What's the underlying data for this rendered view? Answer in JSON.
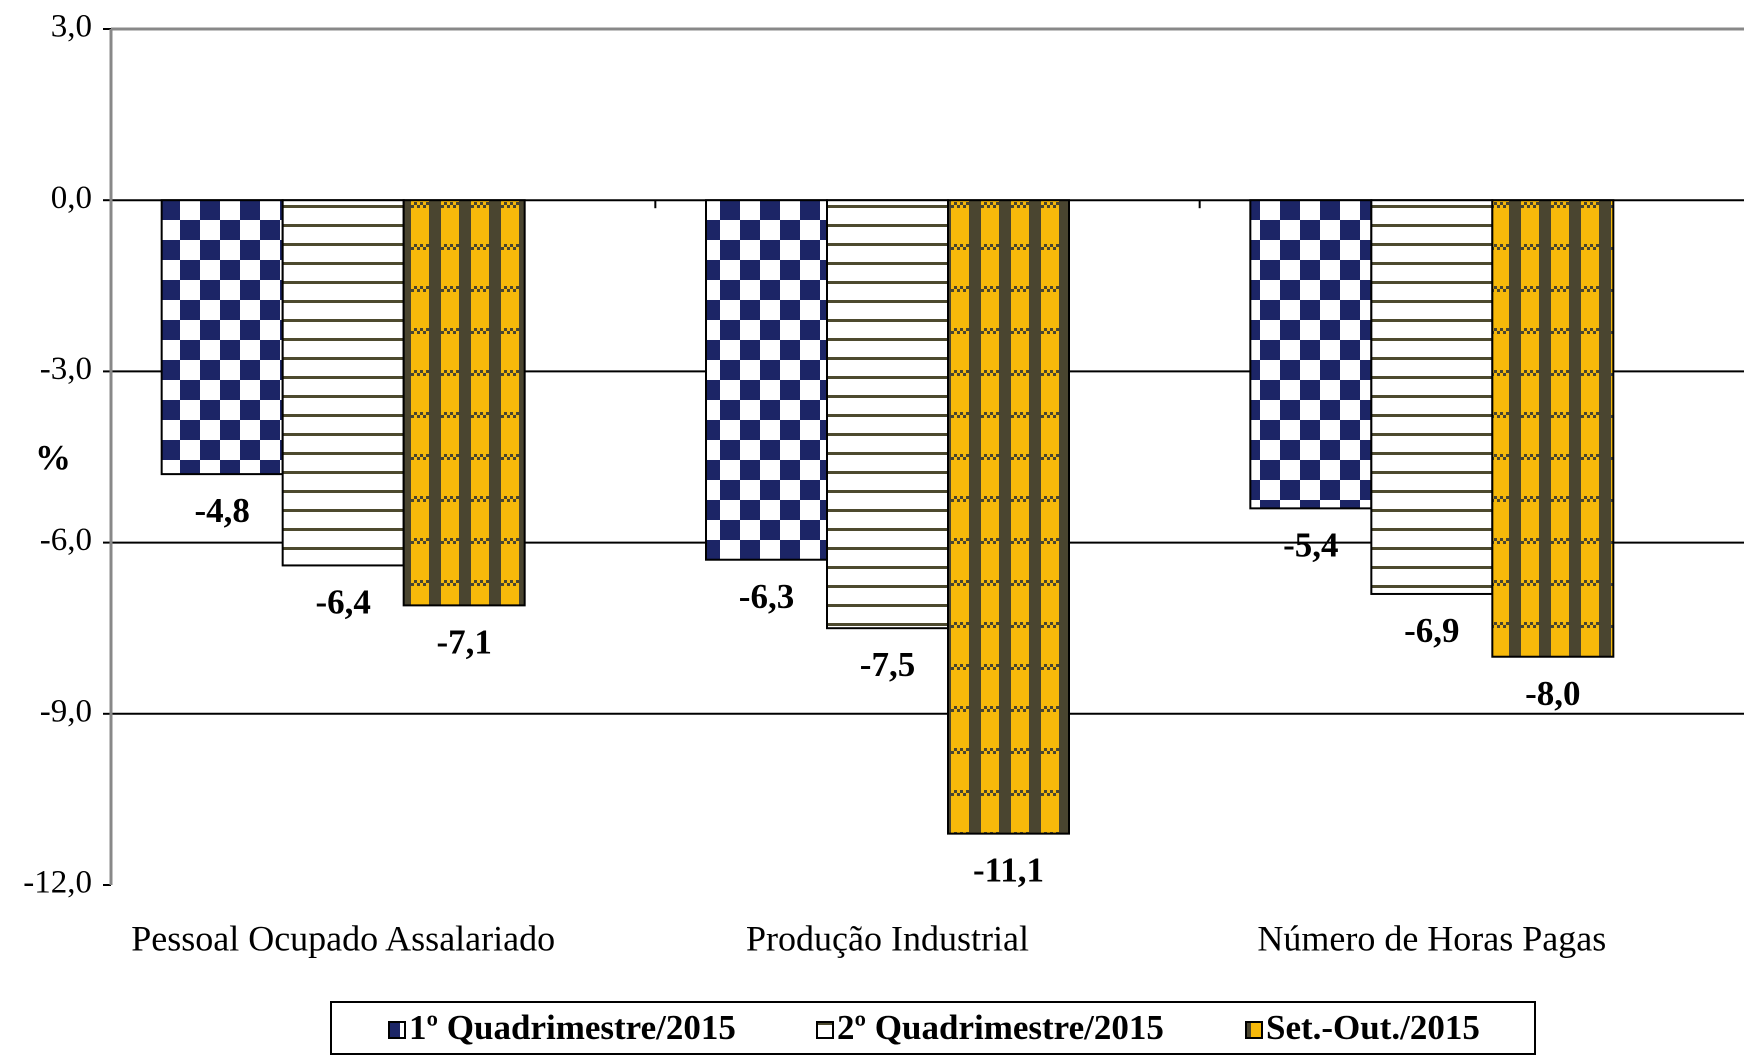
{
  "chart_data": {
    "type": "bar",
    "y_label": "%",
    "categories": [
      "Pessoal Ocupado Assalariado",
      "Produção Industrial",
      "Número de Horas Pagas"
    ],
    "series": [
      {
        "name": "1º Quadrimestre/2015",
        "color": "#1c2566",
        "values": [
          -4.8,
          -6.3,
          -5.4
        ],
        "value_labels": [
          "-4,8",
          "-6,3",
          "-5,4"
        ]
      },
      {
        "name": "2º Quadrimestre/2015",
        "color": "#4d4a2e",
        "values": [
          -6.4,
          -7.5,
          -6.9
        ],
        "value_labels": [
          "-6,4",
          "-7,5",
          "-6,9"
        ]
      },
      {
        "name": "Set.-Out./2015",
        "color": "#f7b90a",
        "values": [
          -7.1,
          -11.1,
          -8.0
        ],
        "value_labels": [
          "-7,1",
          "-11,1",
          "-8,0"
        ]
      }
    ],
    "ylim": [
      -12,
      3
    ],
    "yticks": [
      {
        "value": 3,
        "label": "3,0"
      },
      {
        "value": 0,
        "label": "0,0"
      },
      {
        "value": -3,
        "label": "-3,0"
      },
      {
        "value": -6,
        "label": "-6,0"
      },
      {
        "value": -9,
        "label": "-9,0"
      },
      {
        "value": -12,
        "label": "-12,0"
      }
    ],
    "grid": true,
    "legend": "bottom"
  }
}
